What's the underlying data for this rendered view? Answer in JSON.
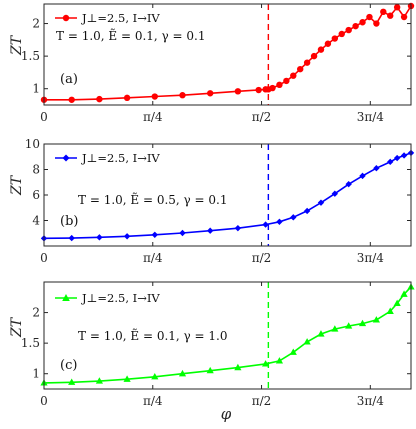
{
  "chart_data": [
    {
      "type": "line",
      "panel_label": "(a)",
      "ylabel": "ZT",
      "xlabel": "",
      "legend_entry": "J⊥=2.5, I→IV",
      "annotation": "T = 1.0, Ẽ = 0.1, γ = 0.1",
      "color": "#ff0000",
      "marker": "circle",
      "ylim": [
        0.75,
        2.3
      ],
      "yticks": [
        "1",
        "1.5",
        "2"
      ],
      "ytick_values": [
        1,
        1.5,
        2
      ],
      "vline_x": 1.62,
      "x": [
        0,
        0.2,
        0.4,
        0.6,
        0.8,
        1.0,
        1.2,
        1.4,
        1.55,
        1.6,
        1.62,
        1.65,
        1.7,
        1.75,
        1.8,
        1.85,
        1.9,
        1.95,
        2.0,
        2.05,
        2.1,
        2.15,
        2.2,
        2.25,
        2.3,
        2.35,
        2.4,
        2.45,
        2.5,
        2.55,
        2.6,
        2.65
      ],
      "y": [
        0.83,
        0.83,
        0.84,
        0.86,
        0.88,
        0.9,
        0.93,
        0.96,
        0.98,
        0.99,
        0.99,
        1.01,
        1.06,
        1.12,
        1.2,
        1.3,
        1.4,
        1.5,
        1.6,
        1.69,
        1.77,
        1.84,
        1.9,
        1.96,
        2.02,
        2.1,
        2.0,
        2.18,
        2.12,
        2.25,
        2.1,
        2.27
      ]
    },
    {
      "type": "line",
      "panel_label": "(b)",
      "ylabel": "ZT",
      "xlabel": "",
      "legend_entry": "J⊥=2.5, I→IV",
      "annotation": "T = 1.0, Ẽ = 0.5, γ = 0.1",
      "color": "#0000ff",
      "marker": "diamond",
      "ylim": [
        2,
        10
      ],
      "yticks": [
        "4",
        "6",
        "8",
        "10"
      ],
      "ytick_values": [
        4,
        6,
        8,
        10
      ],
      "vline_x": 1.62,
      "x": [
        0,
        0.2,
        0.4,
        0.6,
        0.8,
        1.0,
        1.2,
        1.4,
        1.6,
        1.7,
        1.8,
        1.9,
        2.0,
        2.1,
        2.2,
        2.3,
        2.4,
        2.5,
        2.55,
        2.6,
        2.65
      ],
      "y": [
        2.6,
        2.62,
        2.68,
        2.76,
        2.88,
        3.02,
        3.2,
        3.4,
        3.68,
        3.9,
        4.25,
        4.75,
        5.4,
        6.1,
        6.85,
        7.5,
        8.1,
        8.6,
        8.9,
        9.1,
        9.3
      ]
    },
    {
      "type": "line",
      "panel_label": "(c)",
      "ylabel": "ZT",
      "xlabel": "φ",
      "legend_entry": "J⊥=2.5, I→IV",
      "annotation": "T = 1.0, Ẽ = 0.1, γ = 1.0",
      "color": "#00ff00",
      "marker": "triangle",
      "ylim": [
        0.75,
        2.5
      ],
      "yticks": [
        "1",
        "1.5",
        "2"
      ],
      "ytick_values": [
        1,
        1.5,
        2
      ],
      "vline_x": 1.62,
      "xticks": [
        "0",
        "π/4",
        "π/2",
        "3π/4"
      ],
      "xtick_values": [
        0,
        0.785398,
        1.570796,
        2.356194
      ],
      "xlim": [
        0,
        2.65
      ],
      "x": [
        0,
        0.2,
        0.4,
        0.6,
        0.8,
        1.0,
        1.2,
        1.4,
        1.6,
        1.7,
        1.8,
        1.9,
        2.0,
        2.1,
        2.2,
        2.3,
        2.4,
        2.5,
        2.55,
        2.6,
        2.65
      ],
      "y": [
        0.85,
        0.86,
        0.88,
        0.91,
        0.95,
        1.0,
        1.05,
        1.1,
        1.16,
        1.21,
        1.35,
        1.52,
        1.65,
        1.73,
        1.78,
        1.82,
        1.88,
        2.02,
        2.15,
        2.3,
        2.42
      ]
    }
  ]
}
